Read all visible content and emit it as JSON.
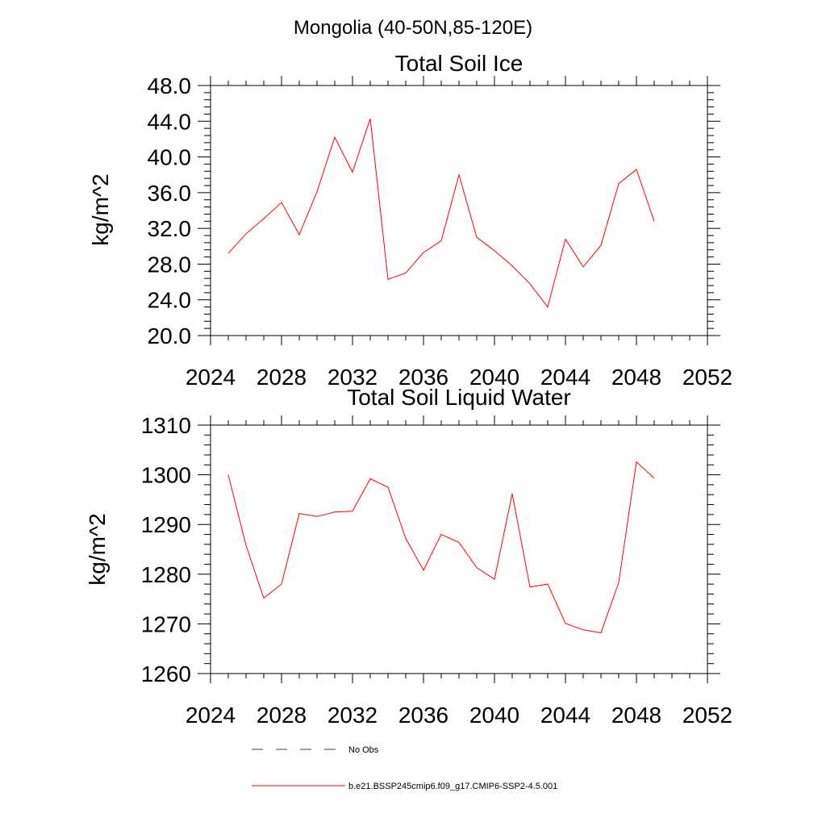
{
  "figure": {
    "suptitle": "Mongolia (40-50N,85-120E)"
  },
  "chart_data": [
    {
      "type": "line",
      "title": "Total Soil Ice",
      "xlabel": "",
      "ylabel": "kg/m^2",
      "xlim": [
        2024,
        2052
      ],
      "ylim": [
        20,
        48
      ],
      "xticks": [
        2024,
        2028,
        2032,
        2036,
        2040,
        2044,
        2048,
        2052
      ],
      "xtick_labels": [
        "2024",
        "2028",
        "2032",
        "2036",
        "2040",
        "2044",
        "2048",
        "2052"
      ],
      "yticks": [
        20,
        24,
        28,
        32,
        36,
        40,
        44,
        48
      ],
      "ytick_labels": [
        "20.0",
        "24.0",
        "28.0",
        "32.0",
        "36.0",
        "40.0",
        "44.0",
        "48.0"
      ],
      "grid": false,
      "series": [
        {
          "name": "b.e21.BSSP245cmip6.f09_g17.CMIP6-SSP2-4.5.001",
          "color": "#ff0000",
          "x": [
            2025,
            2026,
            2027,
            2028,
            2029,
            2030,
            2031,
            2032,
            2033,
            2034,
            2035,
            2036,
            2037,
            2038,
            2039,
            2040,
            2041,
            2042,
            2043,
            2044,
            2045,
            2046,
            2047,
            2048,
            2049
          ],
          "values": [
            29.2,
            31.4,
            33.1,
            34.9,
            31.3,
            36.1,
            42.2,
            38.3,
            44.3,
            26.3,
            27.0,
            29.3,
            30.6,
            38.0,
            31.0,
            29.5,
            27.8,
            25.8,
            23.2,
            30.8,
            27.7,
            30.1,
            37.0,
            38.6,
            32.8
          ]
        }
      ]
    },
    {
      "type": "line",
      "title": "Total Soil Liquid Water",
      "xlabel": "",
      "ylabel": "kg/m^2",
      "xlim": [
        2024,
        2052
      ],
      "ylim": [
        1260,
        1310
      ],
      "xticks": [
        2024,
        2028,
        2032,
        2036,
        2040,
        2044,
        2048,
        2052
      ],
      "xtick_labels": [
        "2024",
        "2028",
        "2032",
        "2036",
        "2040",
        "2044",
        "2048",
        "2052"
      ],
      "yticks": [
        1260,
        1270,
        1280,
        1290,
        1300,
        1310
      ],
      "ytick_labels": [
        "1260",
        "1270",
        "1280",
        "1290",
        "1300",
        "1310"
      ],
      "grid": false,
      "series": [
        {
          "name": "b.e21.BSSP245cmip6.f09_g17.CMIP6-SSP2-4.5.001",
          "color": "#ff0000",
          "x": [
            2025,
            2026,
            2027,
            2028,
            2029,
            2030,
            2031,
            2032,
            2033,
            2034,
            2035,
            2036,
            2037,
            2038,
            2039,
            2040,
            2041,
            2042,
            2043,
            2044,
            2045,
            2046,
            2047,
            2048,
            2049
          ],
          "values": [
            1300.0,
            1285.8,
            1275.2,
            1278.0,
            1292.2,
            1291.6,
            1292.5,
            1292.7,
            1299.2,
            1297.5,
            1287.2,
            1280.8,
            1288.0,
            1286.4,
            1281.3,
            1279.0,
            1296.2,
            1277.4,
            1278.0,
            1270.1,
            1268.8,
            1268.2,
            1278.3,
            1302.6,
            1299.3
          ]
        }
      ]
    }
  ],
  "legend": {
    "placement": "bottom",
    "entries": [
      {
        "label": "No Obs",
        "color": "#3a3a7a",
        "style": "dashed"
      },
      {
        "label": "b.e21.BSSP245cmip6.f09_g17.CMIP6-SSP2-4.5.001",
        "color": "#ff0000",
        "style": "solid"
      }
    ]
  }
}
